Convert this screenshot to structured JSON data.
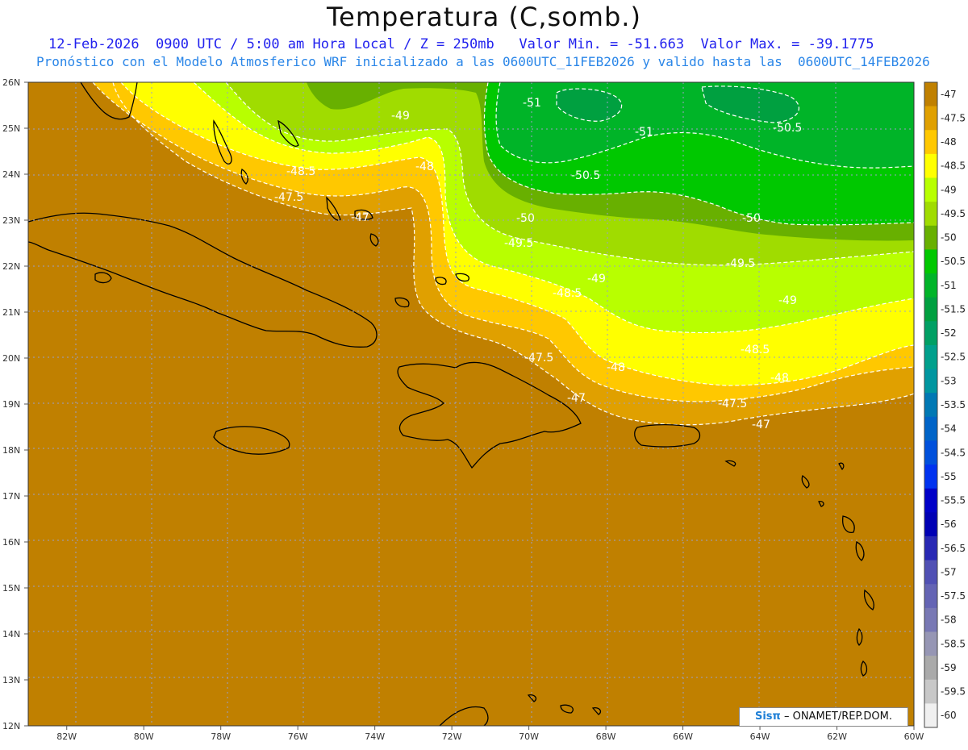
{
  "title": "Temperatura (C,somb.)",
  "subtitle_line1": "12-Feb-2026  0900 UTC / 5:00 am Hora Local / Z = 250mb   Valor Min. = -51.663  Valor Max. = -39.1775",
  "subtitle_line2": "Pronóstico con el Modelo Atmosferico WRF inicializado a las 0600UTC_11FEB2026 y valido hasta las  0600UTC_14FEB2026",
  "map": {
    "lon_range": [
      -83,
      -60
    ],
    "lat_range": [
      12,
      26
    ],
    "lat_labels": [
      "26N",
      "25N",
      "24N",
      "23N",
      "22N",
      "21N",
      "20N",
      "19N",
      "18N",
      "17N",
      "16N",
      "15N",
      "14N",
      "13N",
      "12N"
    ],
    "lon_labels": [
      "82W",
      "80W",
      "78W",
      "76W",
      "74W",
      "72W",
      "70W",
      "68W",
      "66W",
      "64W",
      "62W",
      "60W"
    ],
    "contour_labels": [
      {
        "text": "-49",
        "zone": "north-center"
      },
      {
        "text": "-51",
        "zone": "north-east"
      },
      {
        "text": "-50.5",
        "zone": "north-east"
      },
      {
        "text": "-48.5",
        "zone": "bahamas"
      },
      {
        "text": "-48",
        "zone": "bahamas"
      },
      {
        "text": "-47.5",
        "zone": "bahamas"
      },
      {
        "text": "-47",
        "zone": "bahamas"
      },
      {
        "text": "-50",
        "zone": "central"
      },
      {
        "text": "-49.5",
        "zone": "central"
      },
      {
        "text": "-48.5",
        "zone": "central"
      },
      {
        "text": "-47.5",
        "zone": "hispaniola"
      },
      {
        "text": "-48",
        "zone": "hispaniola"
      },
      {
        "text": "-47",
        "zone": "hispaniola"
      },
      {
        "text": "-47.5",
        "zone": "puerto-rico"
      },
      {
        "text": "-47",
        "zone": "puerto-rico"
      }
    ]
  },
  "colorbar": {
    "labels": [
      "-47",
      "-47.5",
      "-48",
      "-48.5",
      "-49",
      "-49.5",
      "-50",
      "-50.5",
      "-51",
      "-51.5",
      "-52",
      "-52.5",
      "-53",
      "-53.5",
      "-54",
      "-54.5",
      "-55",
      "-55.5",
      "-56",
      "-56.5",
      "-57",
      "-57.5",
      "-58",
      "-58.5",
      "-59",
      "-59.5",
      "-60"
    ],
    "colors": [
      "#c08000",
      "#e0a000",
      "#ffc800",
      "#ffff00",
      "#b8ff00",
      "#a0dc00",
      "#68b000",
      "#00c800",
      "#00b428",
      "#00a040",
      "#00a064",
      "#00a08c",
      "#0096a0",
      "#0078b4",
      "#0064c8",
      "#0050dc",
      "#0032f0",
      "#0000c8",
      "#0000b4",
      "#2828b4",
      "#5050b4",
      "#6464b4",
      "#7878b4",
      "#9696b4",
      "#aaaaaa",
      "#c8c8c8",
      "#f0f0f0"
    ]
  },
  "colors": {
    "base": "#c08000",
    "band_47": "#e0a000",
    "band_475": "#ffc800",
    "band_48": "#ffff00",
    "band_485": "#b8ff00",
    "band_49": "#a0dc00",
    "band_495": "#68b000",
    "band_50": "#00c800",
    "band_505": "#00b428",
    "band_51": "#00a040"
  },
  "credit": {
    "brand": "Sisπ",
    "text": "– ONAMET/REP.DOM."
  }
}
